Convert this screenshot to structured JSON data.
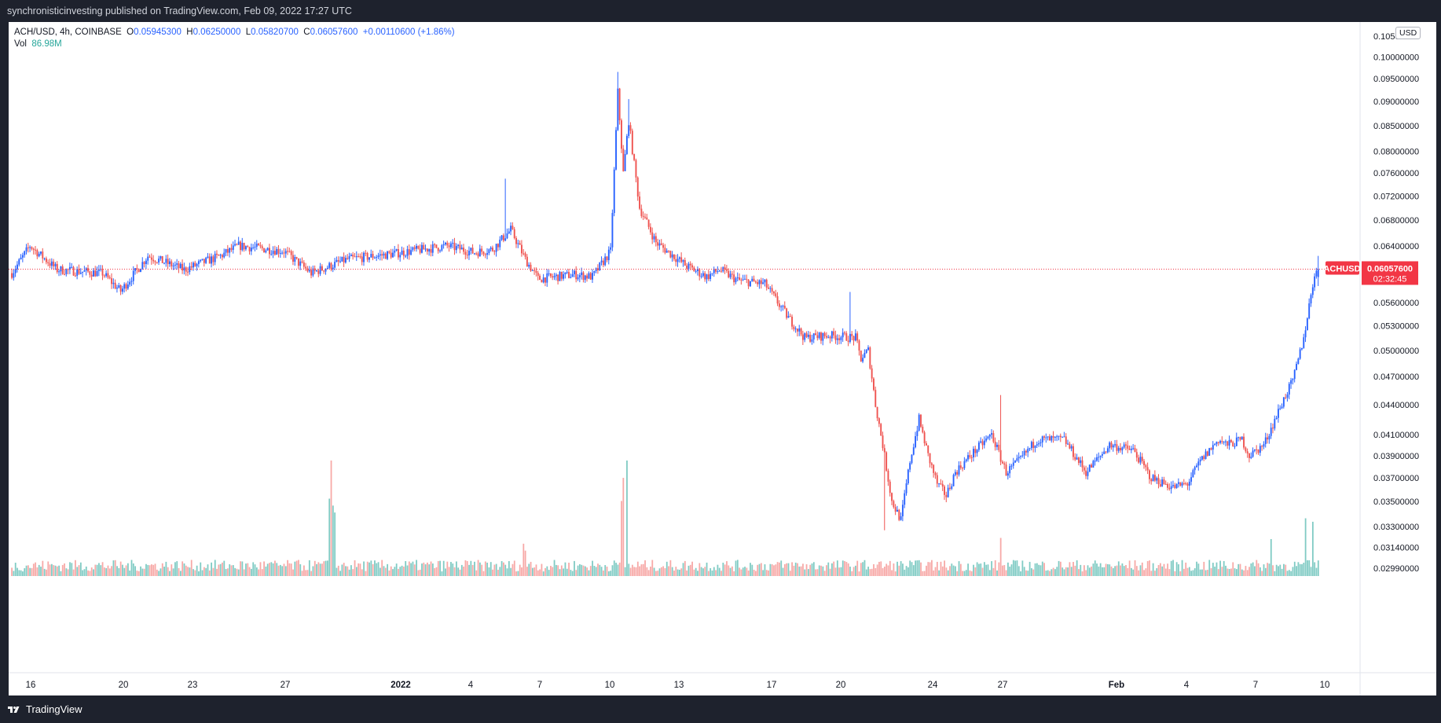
{
  "header": {
    "publish_text": "synchronisticinvesting published on TradingView.com, Feb 09, 2022 17:27 UTC"
  },
  "legend": {
    "symbol": "ACH/USD, 4h, COINBASE",
    "o_label": "O",
    "o_value": "0.05945300",
    "h_label": "H",
    "h_value": "0.06250000",
    "l_label": "L",
    "l_value": "0.05820700",
    "c_label": "C",
    "c_value": "0.06057600",
    "change": "+0.00110600 (+1.86%)",
    "vol_label": "Vol",
    "vol_value": "86.98M"
  },
  "currency_badge": "USD",
  "price_badge": {
    "symbol": "ACHUSD",
    "price": "0.06057600",
    "countdown": "02:32:45"
  },
  "footer": {
    "brand": "TradingView"
  },
  "colors": {
    "up": "#2962ff",
    "down": "#ef5350",
    "vol_up": "#80cbc4",
    "vol_down": "#f7a9a7",
    "last_price": "#f23645"
  },
  "chart_data": {
    "type": "candlestick",
    "symbol": "ACH/USD",
    "interval": "4h",
    "exchange": "COINBASE",
    "last_price": 0.060576,
    "y_ticks": [
      "0.10500000",
      "0.10000000",
      "0.09500000",
      "0.09000000",
      "0.08500000",
      "0.08000000",
      "0.07600000",
      "0.07200000",
      "0.06800000",
      "0.06400000",
      "0.05600000",
      "0.05300000",
      "0.05000000",
      "0.04700000",
      "0.04400000",
      "0.04100000",
      "0.03900000",
      "0.03700000",
      "0.03500000",
      "0.03300000",
      "0.03140000",
      "0.02990000"
    ],
    "x_ticks": [
      "16",
      "20",
      "23",
      "27",
      "2022",
      "4",
      "7",
      "10",
      "13",
      "17",
      "20",
      "24",
      "27",
      "Feb",
      "4",
      "7",
      "10"
    ],
    "y_scale": "log",
    "price_anchors": [
      [
        0,
        0.06
      ],
      [
        10,
        0.064
      ],
      [
        25,
        0.0605
      ],
      [
        50,
        0.06
      ],
      [
        60,
        0.0575
      ],
      [
        75,
        0.0625
      ],
      [
        95,
        0.0605
      ],
      [
        115,
        0.0625
      ],
      [
        125,
        0.064
      ],
      [
        150,
        0.0632
      ],
      [
        165,
        0.06
      ],
      [
        185,
        0.062
      ],
      [
        210,
        0.0628
      ],
      [
        240,
        0.064
      ],
      [
        255,
        0.063
      ],
      [
        265,
        0.0635
      ],
      [
        275,
        0.0665
      ],
      [
        283,
        0.062
      ],
      [
        290,
        0.0592
      ],
      [
        310,
        0.0598
      ],
      [
        320,
        0.0595
      ],
      [
        330,
        0.0632
      ],
      [
        334,
        0.092
      ],
      [
        337,
        0.076
      ],
      [
        340,
        0.086
      ],
      [
        346,
        0.07
      ],
      [
        355,
        0.0645
      ],
      [
        372,
        0.061
      ],
      [
        383,
        0.0595
      ],
      [
        390,
        0.0605
      ],
      [
        400,
        0.059
      ],
      [
        415,
        0.0585
      ],
      [
        428,
        0.054
      ],
      [
        437,
        0.0515
      ],
      [
        450,
        0.0518
      ],
      [
        465,
        0.0515
      ],
      [
        468,
        0.049
      ],
      [
        472,
        0.05
      ],
      [
        476,
        0.044
      ],
      [
        480,
        0.04
      ],
      [
        485,
        0.035
      ],
      [
        490,
        0.0335
      ],
      [
        495,
        0.0385
      ],
      [
        500,
        0.0425
      ],
      [
        505,
        0.039
      ],
      [
        510,
        0.0365
      ],
      [
        515,
        0.0355
      ],
      [
        520,
        0.0375
      ],
      [
        530,
        0.0393
      ],
      [
        540,
        0.041
      ],
      [
        548,
        0.0375
      ],
      [
        555,
        0.0385
      ],
      [
        565,
        0.0405
      ],
      [
        580,
        0.0405
      ],
      [
        592,
        0.0375
      ],
      [
        605,
        0.04
      ],
      [
        618,
        0.0395
      ],
      [
        628,
        0.037
      ],
      [
        640,
        0.0362
      ],
      [
        648,
        0.0365
      ],
      [
        655,
        0.0385
      ],
      [
        665,
        0.0405
      ],
      [
        670,
        0.04
      ],
      [
        678,
        0.0405
      ],
      [
        682,
        0.039
      ],
      [
        690,
        0.04
      ],
      [
        695,
        0.042
      ],
      [
        702,
        0.045
      ],
      [
        706,
        0.0465
      ],
      [
        712,
        0.0515
      ],
      [
        718,
        0.06
      ],
      [
        720,
        0.0606
      ]
    ],
    "volume_spikes": [
      [
        176,
        1.0
      ],
      [
        177,
        0.61
      ],
      [
        175,
        0.67
      ],
      [
        178,
        0.55
      ],
      [
        339,
        1.0
      ],
      [
        336,
        0.65
      ],
      [
        337,
        0.85
      ],
      [
        282,
        0.28
      ],
      [
        283,
        0.22
      ],
      [
        545,
        0.33
      ],
      [
        717,
        0.47
      ],
      [
        713,
        0.5
      ],
      [
        694,
        0.32
      ]
    ]
  }
}
